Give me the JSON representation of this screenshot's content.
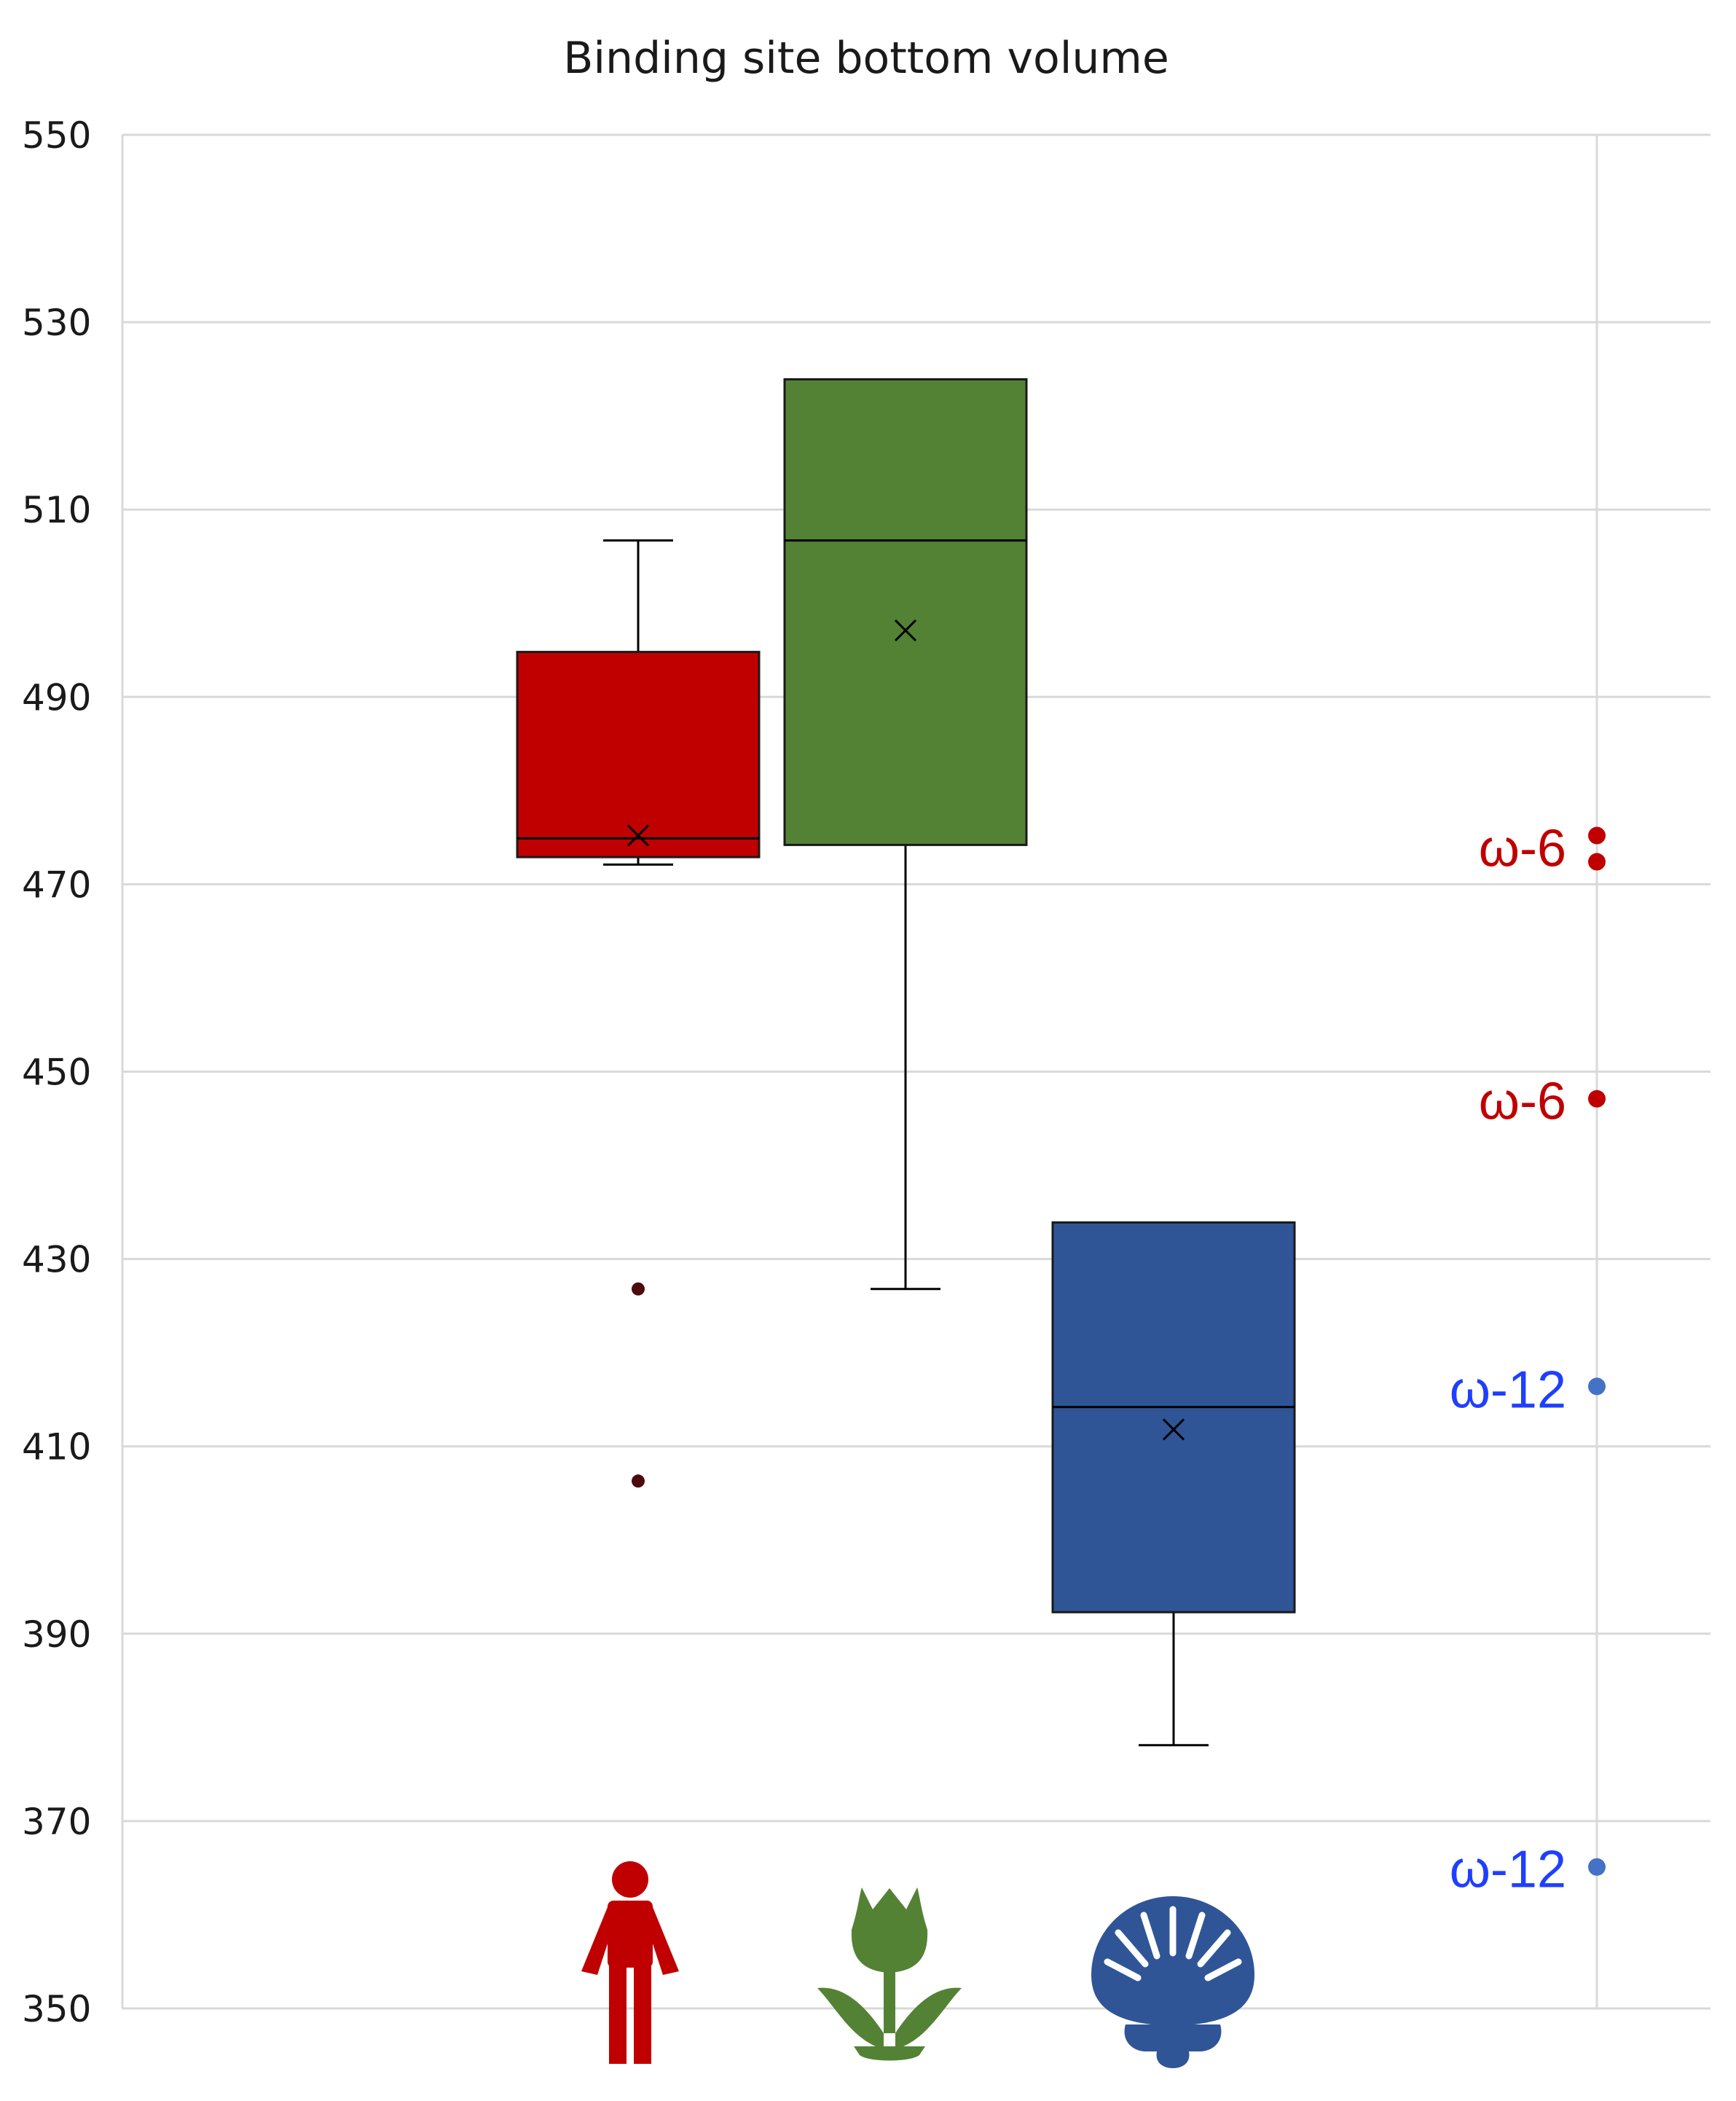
{
  "chart_data": {
    "type": "box",
    "title": "Binding site bottom volume",
    "xlabel": "",
    "ylabel": "",
    "ylim": [
      350,
      550
    ],
    "yticks": [
      350,
      370,
      390,
      410,
      430,
      450,
      470,
      490,
      510,
      530,
      550
    ],
    "grid": true,
    "series": [
      {
        "category_icon": "human-figure-icon",
        "color": "#c00000",
        "whisker_low": 472.1,
        "q1": 472.9,
        "median": 474.9,
        "q3": 494.8,
        "whisker_high": 506.7,
        "mean": 475.2,
        "outliers": [
          426.8,
          406.3
        ]
      },
      {
        "category_icon": "tulip-plant-icon",
        "color": "#548235",
        "whisker_low": 426.8,
        "q1": 474.2,
        "median": 506.7,
        "q3": 523.9,
        "whisker_high": 523.9,
        "mean": 497.1,
        "outliers": []
      },
      {
        "category_icon": "scallop-shell-icon",
        "color": "#2f5597",
        "whisker_low": 378.1,
        "q1": 392.3,
        "median": 414.2,
        "q3": 433.9,
        "whisker_high": 433.9,
        "mean": 411.8,
        "outliers": []
      }
    ],
    "reference_points": [
      {
        "value": 475.2,
        "color": "#c00000"
      },
      {
        "value": 472.4,
        "color": "#c00000"
      },
      {
        "value": 447.1,
        "color": "#c00000"
      },
      {
        "value": 416.4,
        "color": "#4472c4"
      },
      {
        "value": 365.1,
        "color": "#4472c4"
      }
    ],
    "annotations": [
      {
        "text": "ω-6",
        "value": 473.8,
        "color": "#c00000"
      },
      {
        "text": "ω-6",
        "value": 446.8,
        "color": "#c00000"
      },
      {
        "text": "ω-12",
        "value": 416.0,
        "color": "#1f3fff"
      },
      {
        "text": "ω-12",
        "value": 364.8,
        "color": "#1f3fff"
      }
    ]
  }
}
